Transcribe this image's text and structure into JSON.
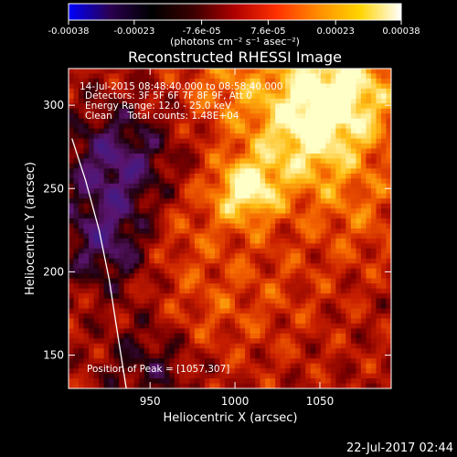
{
  "colorbar": {
    "tick_labels": [
      "-0.00038",
      "-0.00023",
      "-7.6e-05",
      "7.6e-05",
      "0.00023",
      "0.00038"
    ],
    "range": [
      -0.00038,
      0.00038
    ],
    "unit_label": "(photons cm⁻² s⁻¹ asec⁻²)",
    "colormap": [
      "#0000ff",
      "#2a004f",
      "#000000",
      "#3a0000",
      "#b00000",
      "#ff3000",
      "#ff8c00",
      "#ffd400",
      "#ffffff"
    ]
  },
  "chart_data": {
    "type": "heatmap",
    "title": "Reconstructed RHESSI Image",
    "xlabel": "Heliocentric X (arcsec)",
    "ylabel": "Heliocentric Y (arcsec)",
    "xlim": [
      902,
      1092
    ],
    "ylim": [
      130,
      322
    ],
    "x_ticks": [
      950,
      1000,
      1050
    ],
    "y_ticks": [
      150,
      200,
      250,
      300
    ],
    "x_tick_labels": [
      "950",
      "1000",
      "1050"
    ],
    "y_tick_labels": [
      "150",
      "200",
      "250",
      "300"
    ],
    "peak": [
      1057,
      307
    ],
    "limb_curve": [
      [
        904,
        280
      ],
      [
        912,
        255
      ],
      [
        920,
        225
      ],
      [
        926,
        195
      ],
      [
        931,
        162
      ],
      [
        936,
        130
      ]
    ],
    "annotations": [
      "14-Jul-2015 08:48:40.000 to 08:58:40.000",
      "Detectors: 3F 5F 6F 7F 8F 9F, Att 0",
      "Energy Range: 12.0 - 25.0 keV",
      "Clean     Total counts: 1.48E+04"
    ],
    "peak_label": "Position of Peak = [1057,307]"
  },
  "footer": {
    "timestamp": "22-Jul-2017 02:44"
  }
}
